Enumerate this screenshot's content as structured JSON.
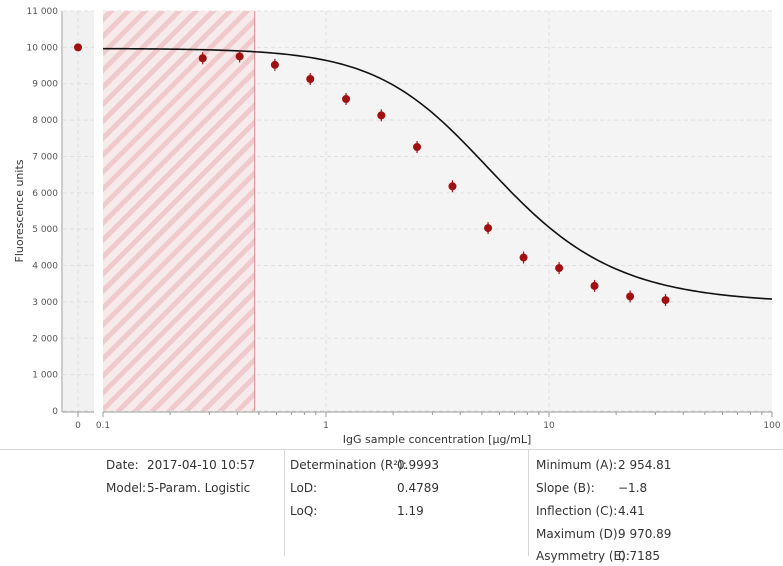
{
  "chart_data": {
    "type": "scatter",
    "title": "",
    "xlabel": "IgG sample concentration [µg/mL]",
    "ylabel": "Fluorescence units",
    "x_scale": "log",
    "x_ticks": [
      "0",
      "0.1",
      "1",
      "10",
      "100"
    ],
    "xlim": [
      0.1,
      100
    ],
    "ylim": [
      0,
      11000
    ],
    "y_ticks": [
      0,
      1000,
      2000,
      3000,
      4000,
      5000,
      6000,
      7000,
      8000,
      9000,
      10000,
      11000
    ],
    "y_tick_labels": [
      "0",
      "1 000",
      "2 000",
      "3 000",
      "4 000",
      "5 000",
      "6 000",
      "7 000",
      "8 000",
      "9 000",
      "10 000",
      "11 000"
    ],
    "grid": true,
    "excluded_region": {
      "x_start": 0.1,
      "x_end": 0.4789,
      "color": "#e8a3a8"
    },
    "zero_point": {
      "x": 0,
      "y": 10000
    },
    "points": [
      {
        "x": 0.28,
        "y": 9700
      },
      {
        "x": 0.41,
        "y": 9750
      },
      {
        "x": 0.59,
        "y": 9520
      },
      {
        "x": 0.85,
        "y": 9130
      },
      {
        "x": 1.23,
        "y": 8580
      },
      {
        "x": 1.77,
        "y": 8130
      },
      {
        "x": 2.56,
        "y": 7260
      },
      {
        "x": 3.69,
        "y": 6180
      },
      {
        "x": 5.33,
        "y": 5030
      },
      {
        "x": 7.69,
        "y": 4220
      },
      {
        "x": 11.1,
        "y": 3930
      },
      {
        "x": 16.0,
        "y": 3440
      },
      {
        "x": 23.1,
        "y": 3150
      },
      {
        "x": 33.3,
        "y": 3050
      }
    ],
    "fit": {
      "model": "5-Param. Logistic",
      "A": 2954.81,
      "B": -1.8,
      "C": 4.41,
      "D": 9970.89,
      "E": 0.7185
    },
    "colors": {
      "points": "#a01010",
      "fit": "#111111",
      "grid": "#e0e0e0"
    }
  },
  "info": {
    "date_label": "Date:",
    "date_value": "2017-04-10 10:57",
    "model_label": "Model:",
    "model_value": "5-Param. Logistic",
    "determination_label": "Determination (R²):",
    "determination_value": "0.9993",
    "lod_label": "LoD:",
    "lod_value": "0.4789",
    "loq_label": "LoQ:",
    "loq_value": "1.19",
    "minimum_label": "Minimum (A):",
    "minimum_value": "2 954.81",
    "slope_label": "Slope (B):",
    "slope_value": "−1.8",
    "inflection_label": "Inflection (C):",
    "inflection_value": "4.41",
    "maximum_label": "Maximum (D):",
    "maximum_value": "9 970.89",
    "asymmetry_label": "Asymmetry (E):",
    "asymmetry_value": "0.7185"
  }
}
